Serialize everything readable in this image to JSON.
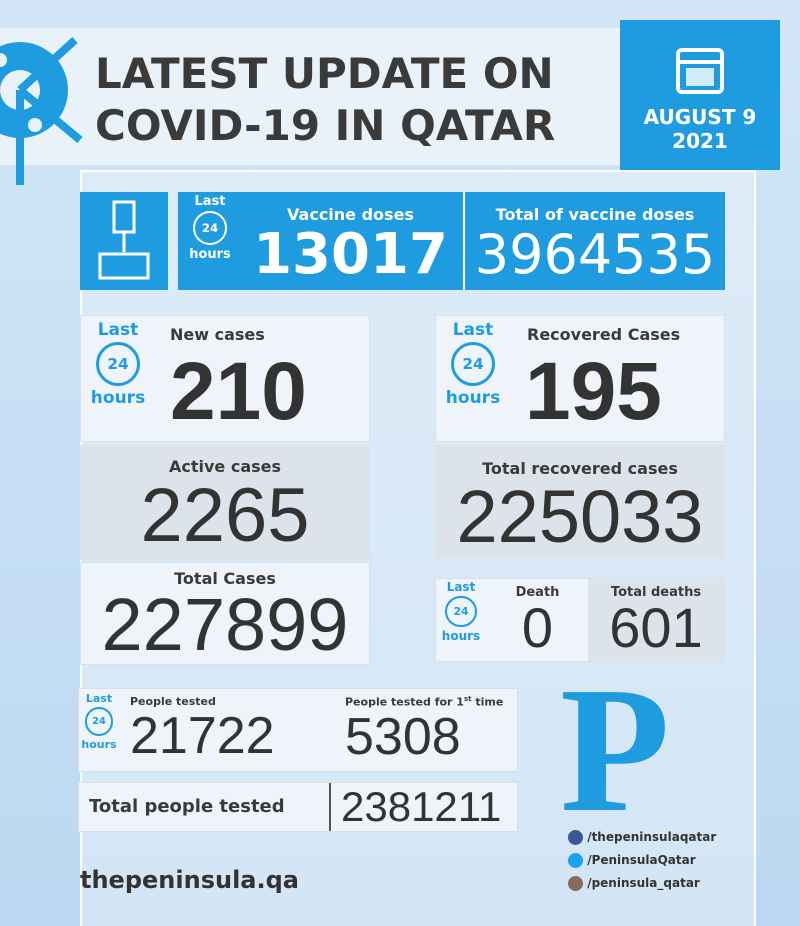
{
  "header": {
    "title_lines": [
      "LATEST UPDATE ON",
      "COVID-19 IN QATAR"
    ],
    "date": "AUGUST 9",
    "year": "2021"
  },
  "badge": {
    "last": "Last",
    "num": "24",
    "unit": "hours"
  },
  "vaccine": {
    "daily_label": "Vaccine doses",
    "daily": 13017,
    "total_label": "Total of vaccine doses",
    "total": 3964535
  },
  "cases": {
    "new_label": "New cases",
    "new": 210,
    "active_label": "Active cases",
    "active": 2265,
    "total_label": "Total Cases",
    "total": 227899
  },
  "recovered": {
    "new_label": "Recovered Cases",
    "new": 195,
    "total_label": "Total recovered cases",
    "total": 225033
  },
  "deaths": {
    "new_label": "Death",
    "new": 0,
    "total_label": "Total deaths",
    "total": 601
  },
  "tests": {
    "daily_label": "People tested",
    "daily": 21722,
    "first_label_parts": [
      "People tested for 1",
      "st",
      "time"
    ],
    "first": 5308,
    "total_label": "Total people tested",
    "total": 2381211
  },
  "footer": {
    "logo": "P",
    "site": "thepeninsula.qa",
    "facebook": "/thepeninsulaqatar",
    "twitter": "/PeninsulaQatar",
    "instagram": "/peninsula_qatar"
  }
}
